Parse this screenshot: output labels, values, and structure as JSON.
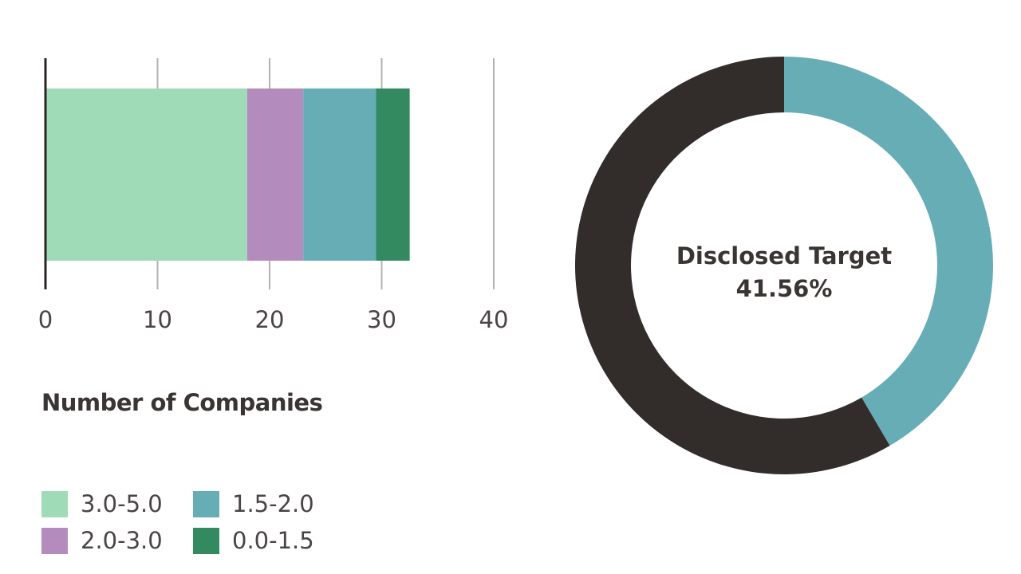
{
  "chart_data": [
    {
      "type": "bar",
      "orientation": "horizontal",
      "stacked": true,
      "xlabel": "Number of Companies",
      "xlim": [
        0,
        40
      ],
      "xticks": [
        0,
        10,
        20,
        30,
        40
      ],
      "grid": true,
      "legend_position": "bottom-left",
      "series": [
        {
          "name": "3.0-5.0",
          "value": 18,
          "color": "#9edbb6"
        },
        {
          "name": "2.0-3.0",
          "value": 5,
          "color": "#b48bbd"
        },
        {
          "name": "1.5-2.0",
          "value": 6.5,
          "color": "#66adb5"
        },
        {
          "name": "0.0-1.5",
          "value": 3,
          "color": "#348a60"
        }
      ]
    },
    {
      "type": "pie",
      "style": "donut",
      "center_label": [
        "Disclosed Target",
        "41.56%"
      ],
      "slices": [
        {
          "value": 41.56,
          "color": "#66adb5"
        },
        {
          "value": 58.44,
          "color": "#322c2a"
        }
      ]
    }
  ]
}
